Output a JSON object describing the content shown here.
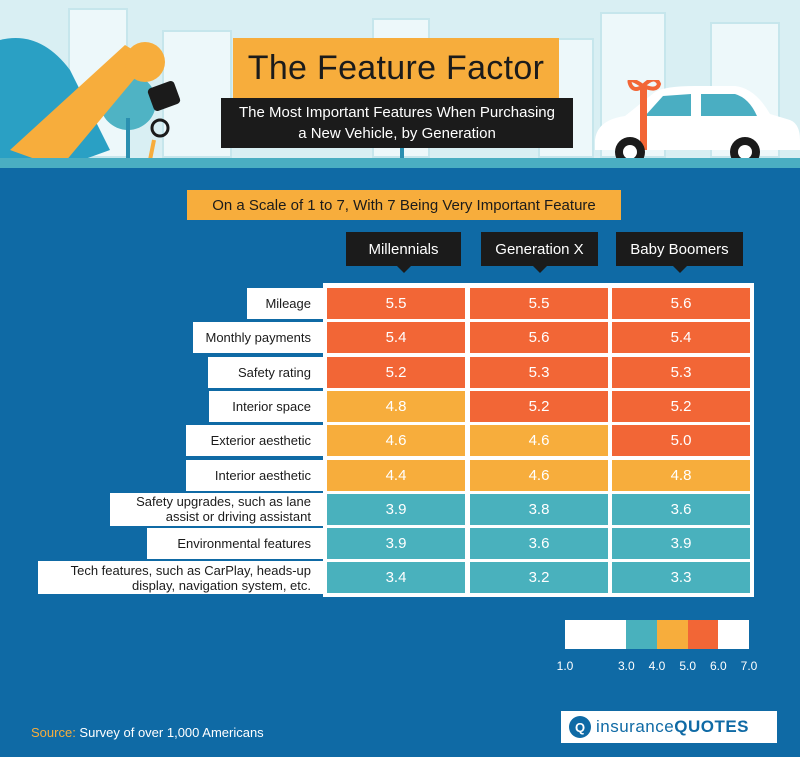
{
  "header": {
    "title": "The Feature Factor",
    "subtitle_line1": "The Most Important Features When Purchasing",
    "subtitle_line2": "a New Vehicle, by Generation"
  },
  "scale_note": "On a Scale of 1 to 7, With 7 Being Very Important Feature",
  "colors": {
    "background": "#0f6aa5",
    "accent_orange": "#f7ad3c",
    "high": "#f26636",
    "mid": "#f7ad3c",
    "low": "#49b1bd",
    "dark": "#1b1b1b"
  },
  "chart_data": {
    "type": "table",
    "columns": [
      "Millennials",
      "Generation X",
      "Baby Boomers"
    ],
    "rows": [
      {
        "label": "Mileage",
        "values": [
          5.5,
          5.5,
          5.6
        ]
      },
      {
        "label": "Monthly payments",
        "values": [
          5.4,
          5.6,
          5.4
        ]
      },
      {
        "label": "Safety rating",
        "values": [
          5.2,
          5.3,
          5.3
        ]
      },
      {
        "label": "Interior space",
        "values": [
          4.8,
          5.2,
          5.2
        ]
      },
      {
        "label": "Exterior aesthetic",
        "values": [
          4.6,
          4.6,
          5.0
        ]
      },
      {
        "label": "Interior aesthetic",
        "values": [
          4.4,
          4.6,
          4.8
        ]
      },
      {
        "label": "Safety upgrades, such as lane assist or driving assistant",
        "values": [
          3.9,
          3.8,
          3.6
        ]
      },
      {
        "label": "Environmental features",
        "values": [
          3.9,
          3.6,
          3.9
        ]
      },
      {
        "label": "Tech features, such as CarPlay, heads-up display, navigation system, etc.",
        "values": [
          3.4,
          3.2,
          3.3
        ]
      }
    ],
    "value_labels": [
      [
        "5.5",
        "5.5",
        "5.6"
      ],
      [
        "5.4",
        "5.6",
        "5.4"
      ],
      [
        "5.2",
        "5.3",
        "5.3"
      ],
      [
        "4.8",
        "5.2",
        "5.2"
      ],
      [
        "4.6",
        "4.6",
        "5.0"
      ],
      [
        "4.4",
        "4.6",
        "4.8"
      ],
      [
        "3.9",
        "3.8",
        "3.6"
      ],
      [
        "3.9",
        "3.6",
        "3.9"
      ],
      [
        "3.4",
        "3.2",
        "3.3"
      ]
    ],
    "color_scale": {
      "range": [
        1.0,
        7.0
      ],
      "ticks": [
        "1.0",
        "3.0",
        "4.0",
        "5.0",
        "6.0",
        "7.0"
      ],
      "bands": [
        {
          "from": 3.0,
          "to": 4.0,
          "color": "#49b1bd"
        },
        {
          "from": 4.0,
          "to": 5.0,
          "color": "#f7ad3c"
        },
        {
          "from": 5.0,
          "to": 6.0,
          "color": "#f26636"
        }
      ]
    }
  },
  "footer": {
    "source_label": "Source:",
    "source_text": " Survey of over 1,000 Americans",
    "brand_icon": "Q",
    "brand_part1": "insurance",
    "brand_part2": "QUOTES"
  }
}
